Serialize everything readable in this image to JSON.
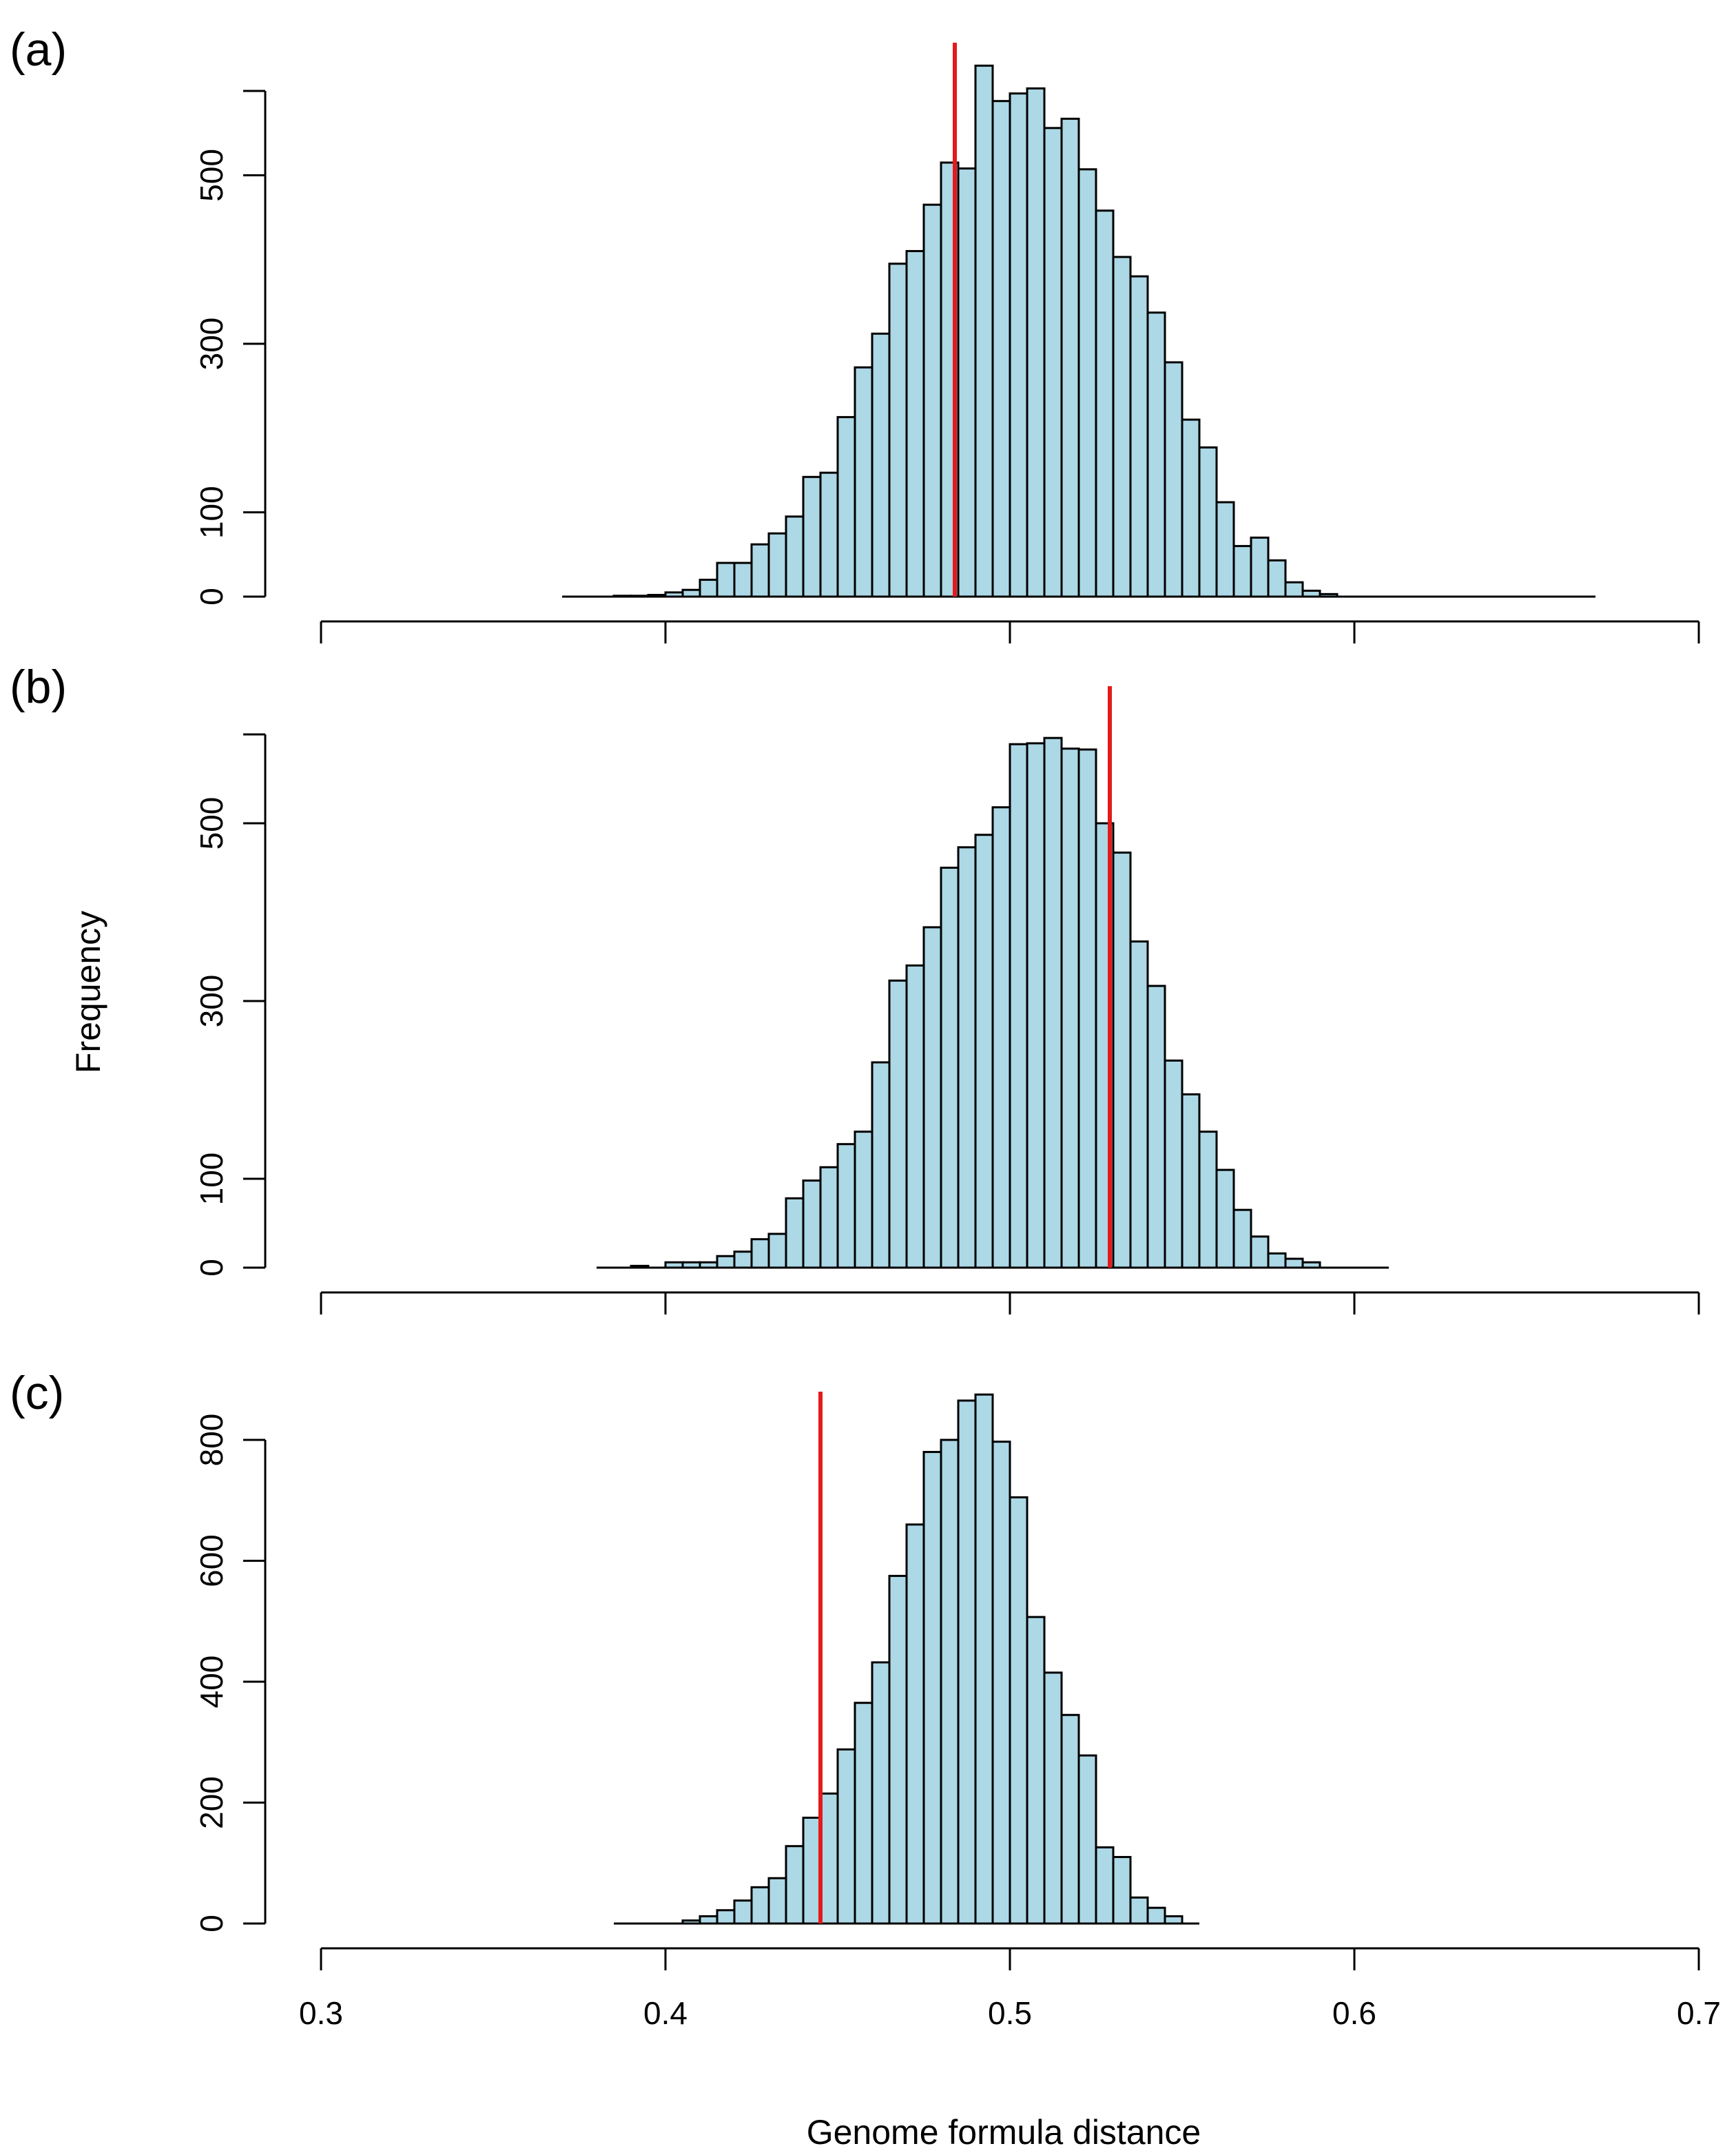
{
  "figure": {
    "ylabel": "Frequency",
    "xlabel": "Genome formula distance",
    "colors": {
      "bar_fill": "#add8e6",
      "bar_edge": "#000000",
      "reference_line": "#e41a1c"
    }
  },
  "chart_data": [
    {
      "type": "bar",
      "panel_label": "(a)",
      "title": "",
      "xlabel": "Genome formula distance",
      "ylabel": "Frequency",
      "xlim": [
        0.3,
        0.7
      ],
      "xticks": [
        0.3,
        0.4,
        0.5,
        0.6,
        0.7
      ],
      "ylim": [
        0,
        600
      ],
      "yticks": [
        0,
        100,
        300,
        500
      ],
      "show_xtick_labels": false,
      "bin_start": 0.37,
      "bin_width": 0.005,
      "values": [
        0,
        0,
        0,
        1,
        1,
        2,
        5,
        8,
        20,
        40,
        40,
        62,
        75,
        95,
        142,
        147,
        213,
        272,
        312,
        395,
        410,
        465,
        515,
        508,
        630,
        588,
        597,
        603,
        556,
        567,
        507,
        458,
        403,
        380,
        337,
        278,
        210,
        177,
        112,
        60,
        70,
        43,
        17,
        7,
        3,
        0,
        0,
        0,
        0,
        0,
        0,
        0,
        0,
        0,
        0,
        0,
        0,
        0,
        0,
        0
      ],
      "reference_line": 0.484
    },
    {
      "type": "bar",
      "panel_label": "(b)",
      "title": "",
      "xlabel": "Genome formula distance",
      "ylabel": "Frequency",
      "xlim": [
        0.3,
        0.7
      ],
      "xticks": [
        0.3,
        0.4,
        0.5,
        0.6,
        0.7
      ],
      "ylim": [
        0,
        600
      ],
      "yticks": [
        0,
        100,
        300,
        500
      ],
      "show_xtick_labels": false,
      "bin_start": 0.38,
      "bin_width": 0.005,
      "values": [
        0,
        0,
        2,
        0,
        6,
        6,
        6,
        13,
        18,
        32,
        38,
        78,
        98,
        113,
        139,
        153,
        231,
        323,
        340,
        383,
        450,
        473,
        487,
        518,
        589,
        590,
        596,
        584,
        583,
        500,
        467,
        367,
        317,
        233,
        195,
        153,
        110,
        65,
        35,
        16,
        10,
        6,
        0,
        0,
        0,
        0
      ],
      "reference_line": 0.529
    },
    {
      "type": "bar",
      "panel_label": "(c)",
      "title": "",
      "xlabel": "Genome formula distance",
      "ylabel": "Frequency",
      "xlim": [
        0.3,
        0.7
      ],
      "xticks": [
        0.3,
        0.4,
        0.5,
        0.6,
        0.7
      ],
      "ylim": [
        0,
        800
      ],
      "yticks": [
        0,
        200,
        400,
        600,
        800
      ],
      "show_xtick_labels": true,
      "bin_start": 0.385,
      "bin_width": 0.005,
      "values": [
        0,
        0,
        0,
        0,
        5,
        12,
        22,
        38,
        60,
        75,
        128,
        175,
        215,
        288,
        365,
        432,
        575,
        660,
        780,
        800,
        865,
        875,
        797,
        705,
        507,
        415,
        345,
        278,
        126,
        110,
        43,
        26,
        12,
        0
      ],
      "reference_line": 0.445
    }
  ]
}
